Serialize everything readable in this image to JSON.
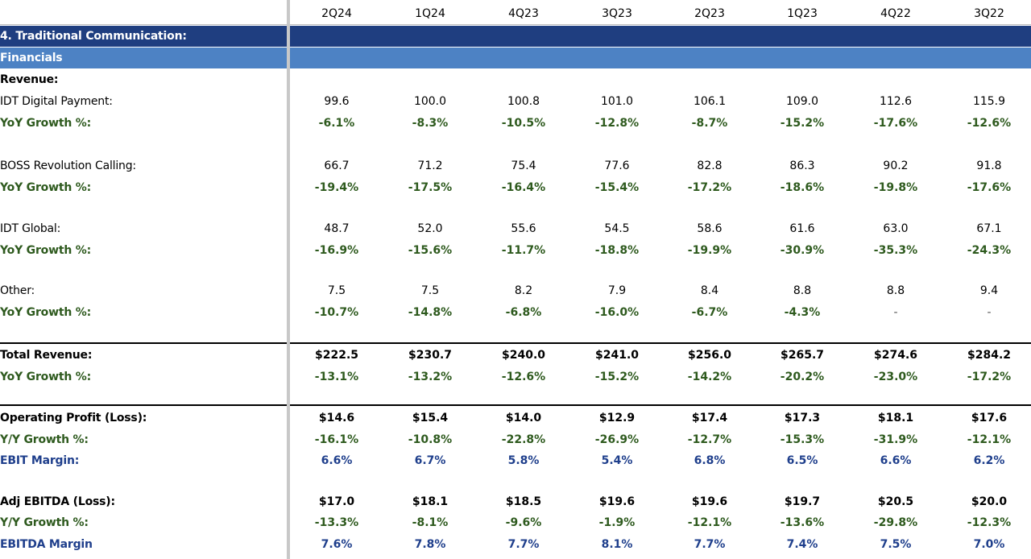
{
  "columns": [
    "2Q24",
    "1Q24",
    "4Q23",
    "3Q23",
    "2Q23",
    "1Q23",
    "4Q22",
    "3Q22"
  ],
  "section_title": "4. Traditional Communication:",
  "subsection_title": "Financials",
  "revenue_header": "Revenue:",
  "idt_digital": {
    "label": "IDT Digital Payment:",
    "values": [
      "99.6",
      "100.0",
      "100.8",
      "101.0",
      "106.1",
      "109.0",
      "112.6",
      "115.9"
    ],
    "growth_label": "YoY Growth %:",
    "growth": [
      "-6.1%",
      "-8.3%",
      "-10.5%",
      "-12.8%",
      "-8.7%",
      "-15.2%",
      "-17.6%",
      "-12.6%"
    ]
  },
  "boss": {
    "label": "BOSS Revolution Calling:",
    "values": [
      "66.7",
      "71.2",
      "75.4",
      "77.6",
      "82.8",
      "86.3",
      "90.2",
      "91.8"
    ],
    "growth_label": "YoY Growth %:",
    "growth": [
      "-19.4%",
      "-17.5%",
      "-16.4%",
      "-15.4%",
      "-17.2%",
      "-18.6%",
      "-19.8%",
      "-17.6%"
    ]
  },
  "idt_global": {
    "label": "IDT Global:",
    "values": [
      "48.7",
      "52.0",
      "55.6",
      "54.5",
      "58.6",
      "61.6",
      "63.0",
      "67.1"
    ],
    "growth_label": "YoY Growth %:",
    "growth": [
      "-16.9%",
      "-15.6%",
      "-11.7%",
      "-18.8%",
      "-19.9%",
      "-30.9%",
      "-35.3%",
      "-24.3%"
    ]
  },
  "other": {
    "label": "Other:",
    "values": [
      "7.5",
      "7.5",
      "8.2",
      "7.9",
      "8.4",
      "8.8",
      "8.8",
      "9.4"
    ],
    "growth_label": "YoY Growth %:",
    "growth": [
      "-10.7%",
      "-14.8%",
      "-6.8%",
      "-16.0%",
      "-6.7%",
      "-4.3%",
      "-",
      "-"
    ]
  },
  "total_revenue": {
    "label": "Total Revenue:",
    "values": [
      "$222.5",
      "$230.7",
      "$240.0",
      "$241.0",
      "$256.0",
      "$265.7",
      "$274.6",
      "$284.2"
    ],
    "growth_label": "YoY Growth %:",
    "growth": [
      "-13.1%",
      "-13.2%",
      "-12.6%",
      "-15.2%",
      "-14.2%",
      "-20.2%",
      "-23.0%",
      "-17.2%"
    ]
  },
  "operating_profit": {
    "label": "Operating Profit (Loss):",
    "values": [
      "$14.6",
      "$15.4",
      "$14.0",
      "$12.9",
      "$17.4",
      "$17.3",
      "$18.1",
      "$17.6"
    ],
    "growth_label": "Y/Y Growth %:",
    "growth": [
      "-16.1%",
      "-10.8%",
      "-22.8%",
      "-26.9%",
      "-12.7%",
      "-15.3%",
      "-31.9%",
      "-12.1%"
    ],
    "margin_label": "EBIT Margin:",
    "margin": [
      "6.6%",
      "6.7%",
      "5.8%",
      "5.4%",
      "6.8%",
      "6.5%",
      "6.6%",
      "6.2%"
    ]
  },
  "adj_ebitda": {
    "label": "Adj EBITDA (Loss):",
    "values": [
      "$17.0",
      "$18.1",
      "$18.5",
      "$19.6",
      "$19.6",
      "$19.7",
      "$20.5",
      "$20.0"
    ],
    "growth_label": "Y/Y Growth %:",
    "growth": [
      "-13.3%",
      "-8.1%",
      "-9.6%",
      "-1.9%",
      "-12.1%",
      "-13.6%",
      "-29.8%",
      "-12.3%"
    ],
    "margin_label": "EBITDA Margin",
    "margin": [
      "7.6%",
      "7.8%",
      "7.7%",
      "8.1%",
      "7.7%",
      "7.4%",
      "7.5%",
      "7.0%"
    ]
  },
  "colors": {
    "section_band": "#1f3e80",
    "subsection_band": "#4d82c4",
    "growth_text": "#2e5a1e",
    "margin_text": "#1f3f8c"
  }
}
